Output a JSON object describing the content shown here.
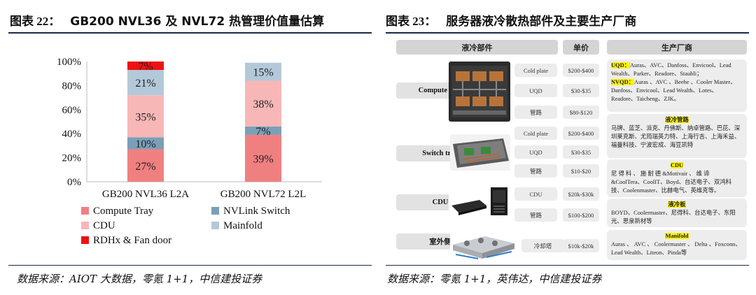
{
  "left": {
    "header_label": "图表 22：",
    "header_title": "GB200 NVL36 及 NVL72 热管理价值量估算",
    "source": "数据来源：AIOT 大数据，零氪 1+1，中信建投证券"
  },
  "right": {
    "header_label": "图表 23：",
    "header_title": "服务器液冷散热部件及主要生产厂商",
    "source": "数据来源：零氪 1+1，英伟达，中信建投证券"
  },
  "chart_data": {
    "type": "bar",
    "stacked": true,
    "categories": [
      "GB200 NVL36 L2A",
      "GB200 NVL72 L2L"
    ],
    "yticks": [
      "0%",
      "20%",
      "40%",
      "60%",
      "80%",
      "100%"
    ],
    "ylim": [
      0,
      100
    ],
    "series": [
      {
        "name": "Compute Tray",
        "color": "#f08080",
        "values": [
          27,
          39
        ],
        "labels": [
          "27%",
          "39%"
        ]
      },
      {
        "name": "NVLink Switch",
        "color": "#7aa0b8",
        "values": [
          10,
          7
        ],
        "labels": [
          "10%",
          "7%"
        ]
      },
      {
        "name": "CDU",
        "color": "#f7b7b7",
        "values": [
          35,
          38
        ],
        "labels": [
          "35%",
          "38%"
        ]
      },
      {
        "name": "Mainfold",
        "color": "#b3c9da",
        "values": [
          21,
          15
        ],
        "labels": [
          "21%",
          "15%"
        ]
      },
      {
        "name": "RDHx & Fan door",
        "color": "#ee1111",
        "values": [
          7,
          0
        ],
        "labels": [
          "7%",
          ""
        ]
      }
    ],
    "legend": [
      "Compute Tray",
      "NVLink Switch",
      "CDU",
      "Mainfold",
      "RDHx & Fan door"
    ]
  },
  "table": {
    "headers": {
      "component": "液冷部件",
      "price": "单价",
      "maker": "生产厂商"
    },
    "groups": [
      {
        "name": "Compute tray",
        "rows": [
          {
            "part": "Cold plate",
            "price": "$200-$400"
          },
          {
            "part": "UQD",
            "price": "$30-$35"
          },
          {
            "part": "管路",
            "price": "$80-$120"
          }
        ]
      },
      {
        "name": "Switch tray",
        "rows": [
          {
            "part": "Cold plate",
            "price": "$200-$400"
          },
          {
            "part": "UQD",
            "price": "$30-$35"
          },
          {
            "part": "管路",
            "price": "$10-$20"
          }
        ]
      },
      {
        "name": "CDU",
        "rows": [
          {
            "part": "CDU",
            "price": "$20k-$30k"
          },
          {
            "part": "管路",
            "price": "$100-$200"
          }
        ]
      },
      {
        "name": "室外侧",
        "rows": [
          {
            "part": "冷却塔",
            "price": "$10k-$20k"
          }
        ]
      }
    ],
    "makers": {
      "uqd_tag": "UQD：",
      "uqd_text": "Auras、AVC、Danfoss、Envicool、Lead Wealth、Parker、Readore、Staubli；",
      "nvqd_tag": "NVQD：",
      "nvqd_text": "Auras 、AVC 、Beehe 、Cooler Master、Danfoss、Envicool、Lead Wealth、Lotes、Readore、Taicheng、ZJK。",
      "pipe_tag": "液冷管路",
      "pipe_text": "马牌、蓝芝、派克、丹佛斯、纳卓管路、巴芘、深圳莱克斯、尤筠瑞英力特、上海行吉、上海禾益、福曼科技、宁波宏成、海豆凯特",
      "cdu_tag": "CDU",
      "cdu_text": "尼 得 科 、 施 耐 德 &Motivair 、 维 谛 &CoolTera、CoolIT、Boyd、台达电子、双鸿科技、Coolenmaster、比赫电气、英维克等。",
      "plate_tag": "液冷板",
      "plate_text": "BOYD、Coolermaster、尼得科、台达电子、东阳光、思泉新材等",
      "manifold_tag": "Manifold",
      "manifold_text": "Auras 、 AVC 、 Coolermaster 、 Delta 、Foxconn、Lead Wealth、Liteon、Pinda等"
    }
  }
}
